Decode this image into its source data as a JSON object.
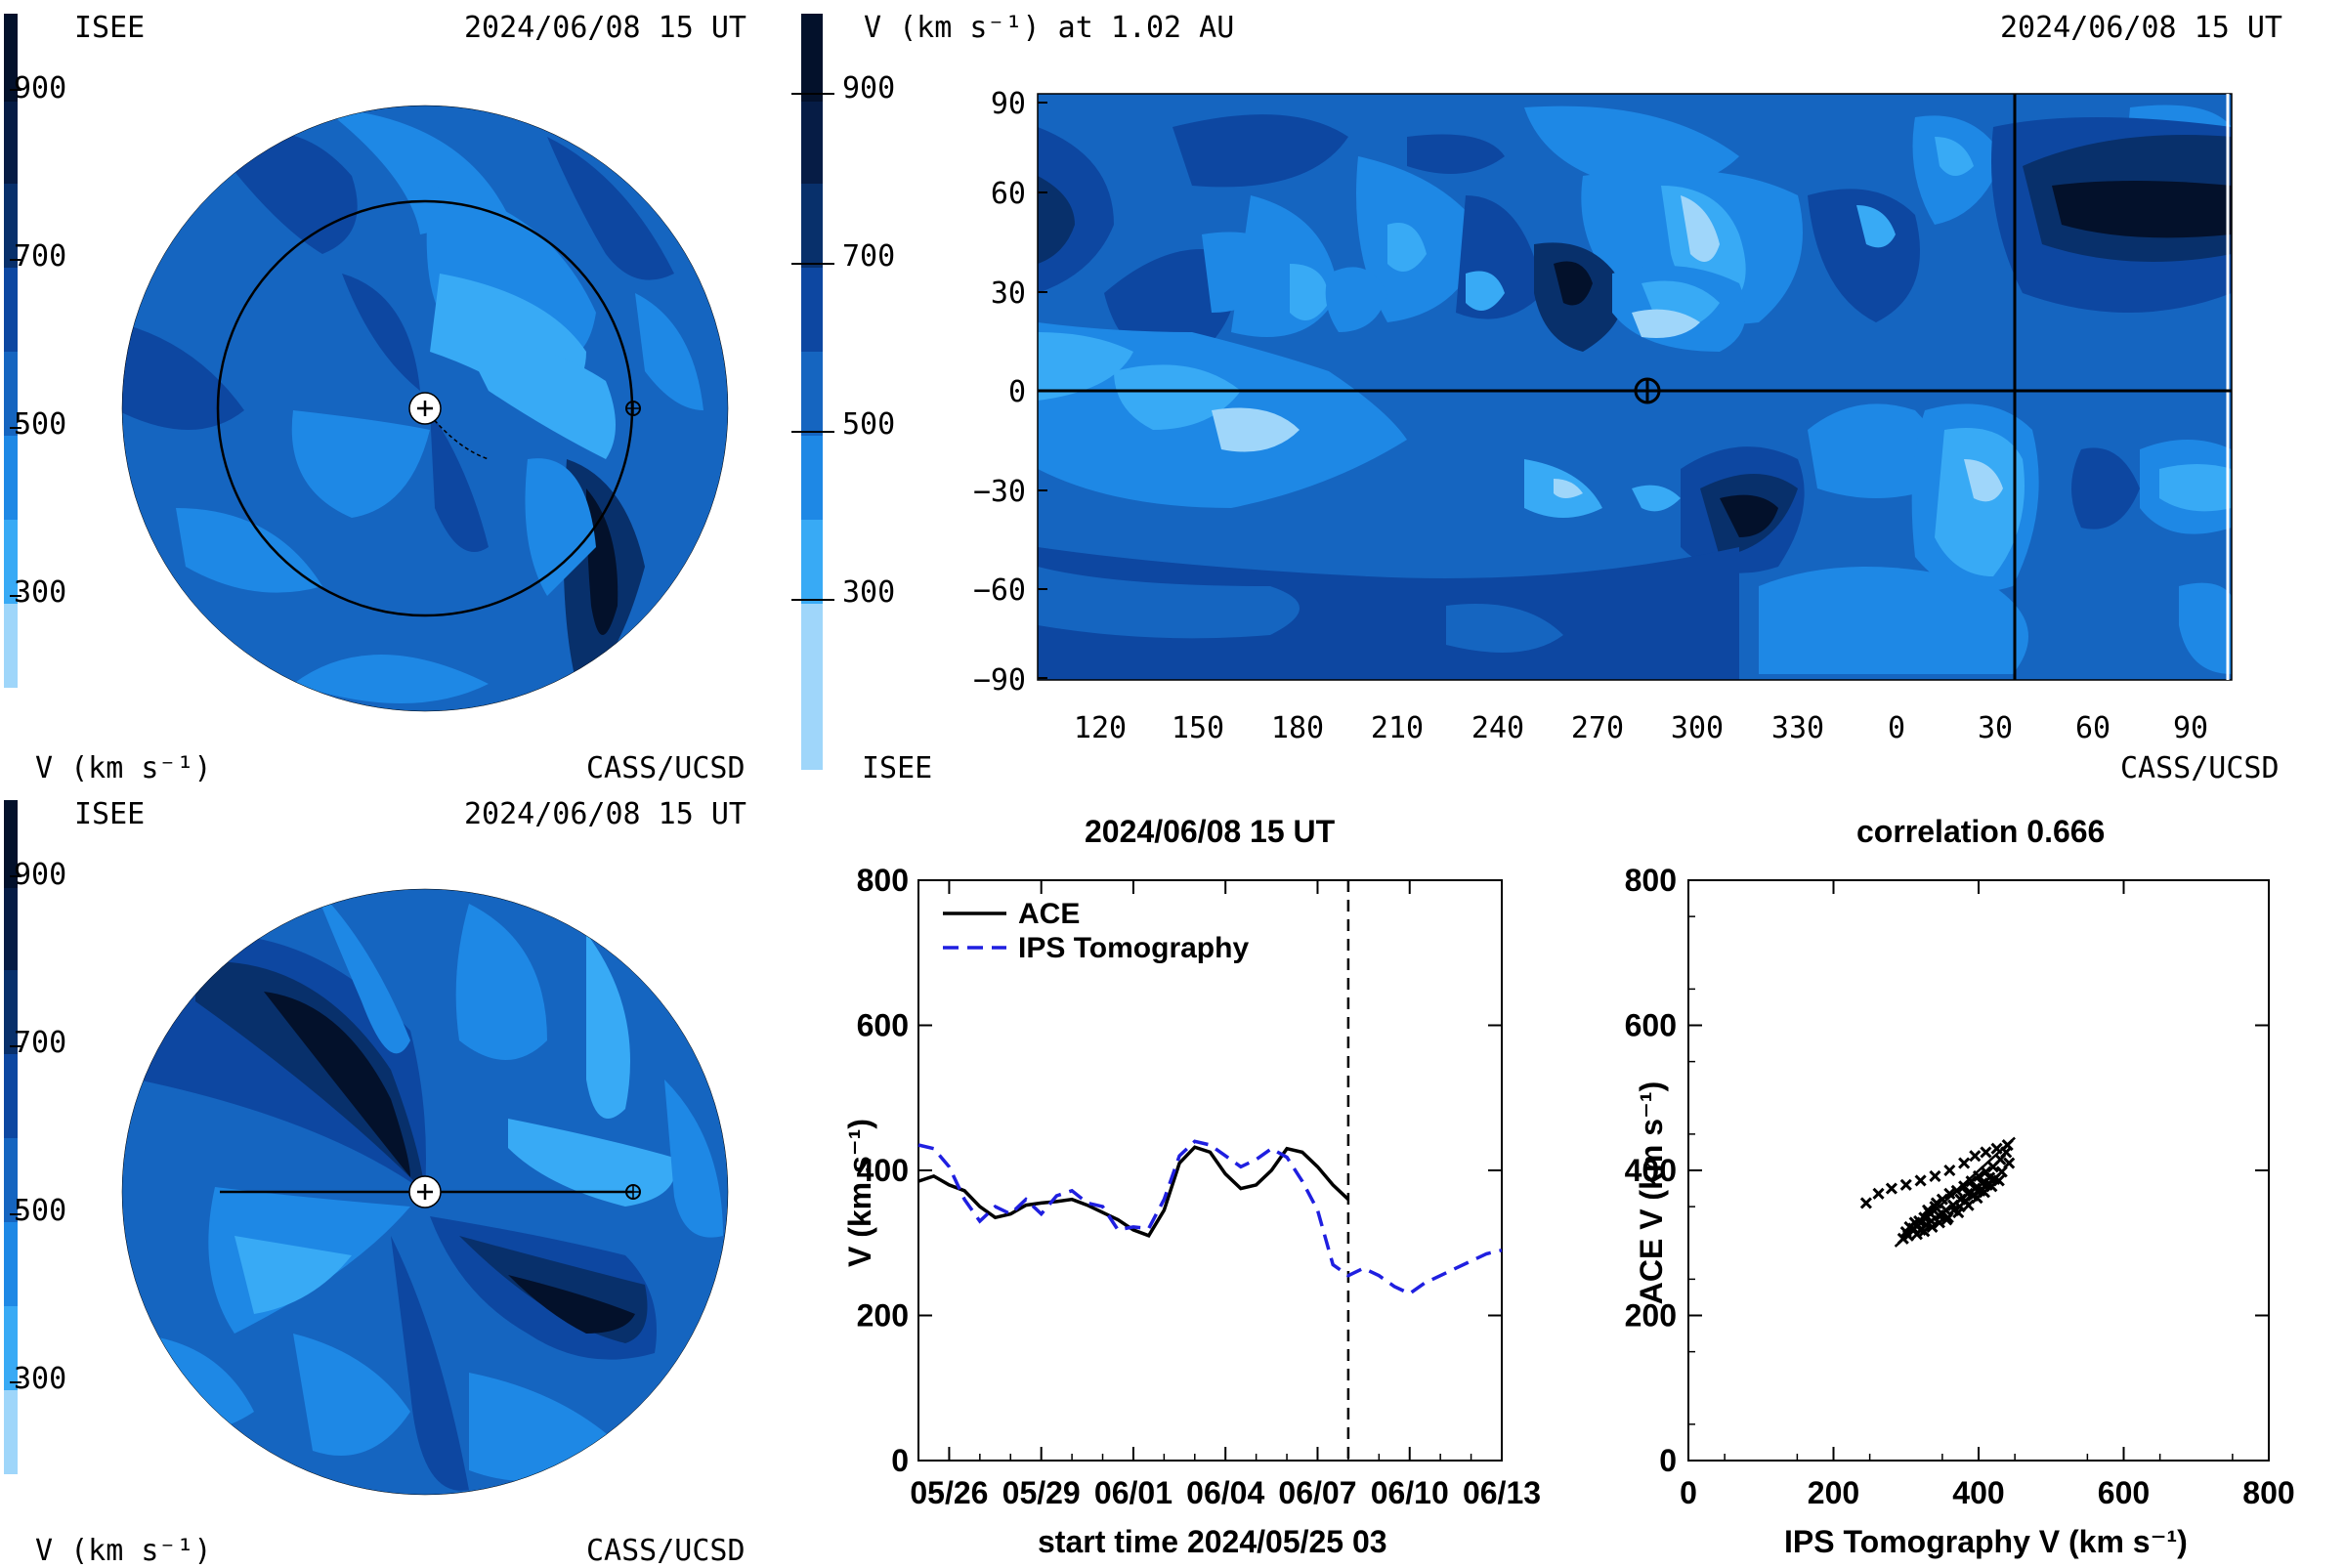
{
  "colors": {
    "v300": "#9fd6fa",
    "v300b": "#38aaf5",
    "v400": "#1e88e5",
    "v500": "#1565c0",
    "v600": "#0d47a1",
    "v700": "#08306b",
    "v900": "#03112b",
    "ace": "#000000",
    "ips": "#1f1fe0"
  },
  "colorbar": {
    "ticks": [
      "900",
      "700",
      "500",
      "300"
    ],
    "label": "V (km s⁻¹)"
  },
  "panel_top_left": {
    "left_label": "ISEE",
    "date_label": "2024/06/08 15 UT",
    "bottom_left": "V (km s⁻¹)",
    "bottom_right": "CASS/UCSD"
  },
  "panel_bottom_left": {
    "left_label": "ISEE",
    "date_label": "2024/06/08 15 UT",
    "bottom_left": "V (km s⁻¹)",
    "bottom_right": "CASS/UCSD"
  },
  "panel_map": {
    "title": "V (km s⁻¹) at 1.02 AU",
    "date_label": "2024/06/08 15 UT",
    "bottom_left": "ISEE",
    "bottom_right": "CASS/UCSD",
    "colorbar_ticks": [
      "900",
      "700",
      "500",
      "300"
    ]
  },
  "chart_data": [
    {
      "type": "line",
      "title": "2024/06/08 15 UT",
      "xlabel": "start time 2024/05/25 03",
      "ylabel": "V (km s⁻¹)",
      "ylim": [
        0,
        800
      ],
      "xlim_days": [
        0.5,
        19.5
      ],
      "x_tick_labels": [
        "05/26",
        "05/29",
        "06/01",
        "06/04",
        "06/07",
        "06/10",
        "06/13"
      ],
      "y_tick_labels": [
        "0",
        "200",
        "400",
        "600",
        "800"
      ],
      "current_time_marker_day": 14.5,
      "series": [
        {
          "name": "ACE",
          "style": "solid",
          "x_days": [
            0.5,
            1.0,
            1.5,
            2.0,
            2.5,
            3.0,
            3.5,
            4.0,
            4.5,
            5.0,
            5.5,
            6.0,
            6.5,
            7.0,
            7.5,
            8.0,
            8.5,
            9.0,
            9.5,
            10.0,
            10.5,
            11.0,
            11.5,
            12.0,
            12.5,
            13.0,
            13.5,
            14.0,
            14.5
          ],
          "values": [
            385,
            392,
            380,
            372,
            350,
            335,
            340,
            352,
            355,
            357,
            360,
            352,
            342,
            332,
            318,
            310,
            345,
            410,
            432,
            425,
            395,
            375,
            380,
            400,
            430,
            425,
            405,
            380,
            360
          ]
        },
        {
          "name": "IPS Tomography",
          "style": "dashed",
          "x_days": [
            0.5,
            1.0,
            1.5,
            2.0,
            2.5,
            3.0,
            3.5,
            4.0,
            4.5,
            5.0,
            5.5,
            6.0,
            6.5,
            7.0,
            7.5,
            8.0,
            8.5,
            9.0,
            9.5,
            10.0,
            10.5,
            11.0,
            11.5,
            12.0,
            12.5,
            13.0,
            13.5,
            14.0,
            14.5,
            15.0,
            15.5,
            16.0,
            16.5,
            17.0,
            17.5,
            18.0,
            18.5,
            19.0,
            19.5
          ],
          "values": [
            435,
            430,
            405,
            360,
            330,
            350,
            340,
            360,
            340,
            365,
            372,
            355,
            350,
            318,
            322,
            320,
            360,
            420,
            440,
            435,
            420,
            405,
            415,
            430,
            418,
            385,
            345,
            270,
            255,
            265,
            255,
            240,
            230,
            245,
            255,
            265,
            275,
            285,
            290
          ]
        }
      ]
    },
    {
      "type": "scatter",
      "title": "correlation 0.666",
      "xlabel": "IPS Tomography V (km s⁻¹)",
      "ylabel": "ACE V (km s⁻¹)",
      "xlim": [
        0,
        800
      ],
      "ylim": [
        0,
        800
      ],
      "x_tick_labels": [
        "0",
        "200",
        "400",
        "600",
        "800"
      ],
      "y_tick_labels": [
        "0",
        "200",
        "400",
        "600",
        "800"
      ],
      "points": [
        [
          245,
          355
        ],
        [
          262,
          368
        ],
        [
          280,
          375
        ],
        [
          300,
          380
        ],
        [
          320,
          386
        ],
        [
          340,
          392
        ],
        [
          360,
          400
        ],
        [
          380,
          410
        ],
        [
          395,
          420
        ],
        [
          410,
          425
        ],
        [
          425,
          430
        ],
        [
          440,
          435
        ],
        [
          310,
          320
        ],
        [
          318,
          330
        ],
        [
          325,
          335
        ],
        [
          332,
          342
        ],
        [
          340,
          350
        ],
        [
          350,
          360
        ],
        [
          360,
          368
        ],
        [
          370,
          372
        ],
        [
          380,
          378
        ],
        [
          390,
          385
        ],
        [
          400,
          392
        ],
        [
          410,
          398
        ],
        [
          420,
          405
        ],
        [
          430,
          415
        ],
        [
          438,
          425
        ],
        [
          300,
          315
        ],
        [
          305,
          322
        ],
        [
          312,
          328
        ],
        [
          320,
          318
        ],
        [
          328,
          325
        ],
        [
          335,
          330
        ],
        [
          345,
          338
        ],
        [
          355,
          345
        ],
        [
          365,
          352
        ],
        [
          375,
          360
        ],
        [
          385,
          368
        ],
        [
          395,
          375
        ],
        [
          405,
          382
        ],
        [
          415,
          390
        ],
        [
          330,
          345
        ],
        [
          342,
          355
        ],
        [
          350,
          340
        ],
        [
          358,
          335
        ],
        [
          366,
          345
        ],
        [
          374,
          350
        ],
        [
          382,
          358
        ],
        [
          392,
          365
        ],
        [
          402,
          372
        ],
        [
          412,
          380
        ],
        [
          422,
          388
        ],
        [
          432,
          398
        ],
        [
          442,
          410
        ],
        [
          296,
          306
        ],
        [
          303,
          310
        ],
        [
          315,
          312
        ],
        [
          325,
          316
        ],
        [
          336,
          322
        ],
        [
          346,
          328
        ],
        [
          356,
          332
        ],
        [
          372,
          342
        ],
        [
          386,
          352
        ],
        [
          398,
          362
        ],
        [
          408,
          370
        ],
        [
          418,
          378
        ],
        [
          428,
          386
        ]
      ],
      "fit_line": [
        [
          285,
          295
        ],
        [
          450,
          445
        ]
      ]
    }
  ]
}
